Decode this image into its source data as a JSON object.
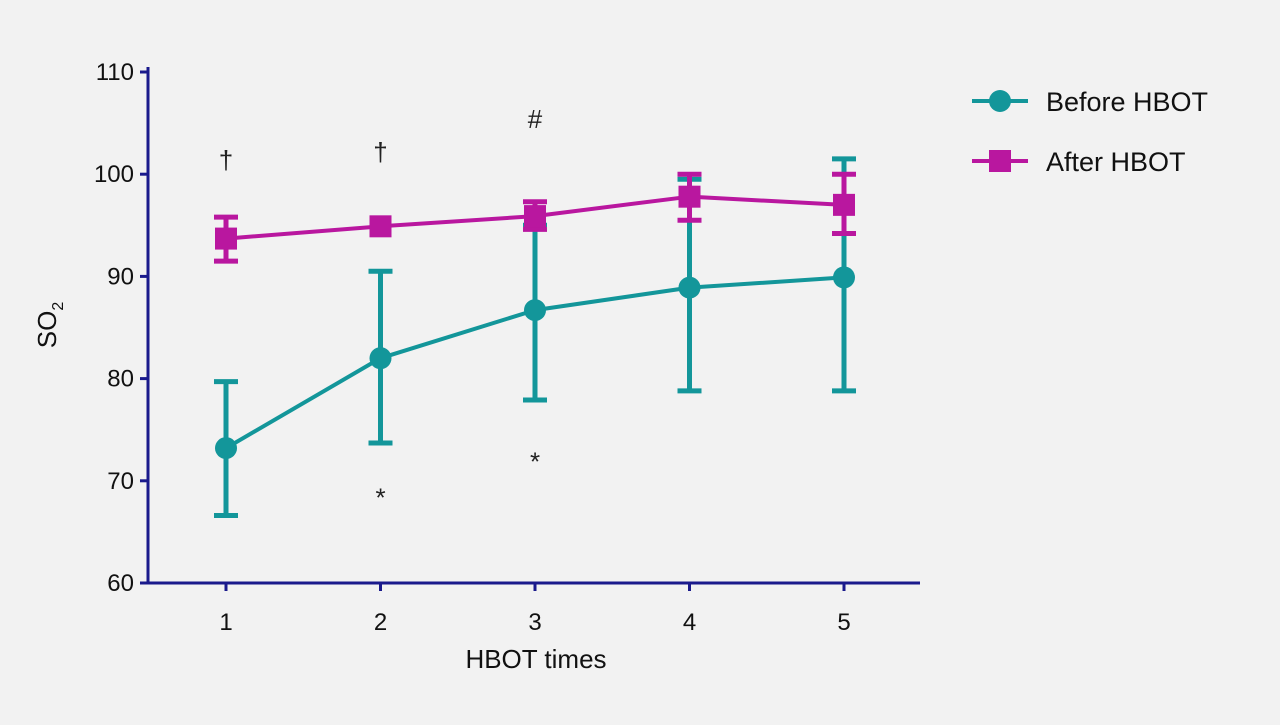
{
  "chart_data": {
    "type": "line",
    "xlabel": "HBOT times",
    "ylabel": "SO",
    "ylabel_subscript": "2",
    "ylim": [
      60,
      110
    ],
    "yticks": [
      60,
      70,
      80,
      90,
      100,
      110
    ],
    "categories": [
      "1",
      "2",
      "3",
      "4",
      "5"
    ],
    "x": [
      1,
      2,
      3,
      4,
      5
    ],
    "grid": false,
    "legend": "right",
    "series": [
      {
        "name": "Before HBOT",
        "color": "#13969a",
        "marker": "circle",
        "values": [
          73.2,
          82.0,
          86.7,
          88.9,
          89.9
        ],
        "err_low": [
          66.6,
          73.7,
          77.9,
          78.8,
          78.8
        ],
        "err_high": [
          79.7,
          90.5,
          95.0,
          99.5,
          101.5
        ]
      },
      {
        "name": "After HBOT",
        "color": "#b9179f",
        "marker": "square",
        "values": [
          93.7,
          94.9,
          95.9,
          97.8,
          97.0
        ],
        "err_low": [
          91.5,
          94.9,
          94.6,
          95.5,
          94.2
        ],
        "err_high": [
          95.8,
          94.9,
          97.3,
          100.0,
          100.0
        ]
      }
    ],
    "annotations": [
      {
        "text": "†",
        "x": 1,
        "y": 100.5
      },
      {
        "text": "†",
        "x": 2,
        "y": 101.3
      },
      {
        "text": "#",
        "x": 3,
        "y": 104.5
      },
      {
        "text": "*",
        "x": 2,
        "y": 67.5
      },
      {
        "text": "*",
        "x": 3,
        "y": 71.0
      }
    ]
  }
}
